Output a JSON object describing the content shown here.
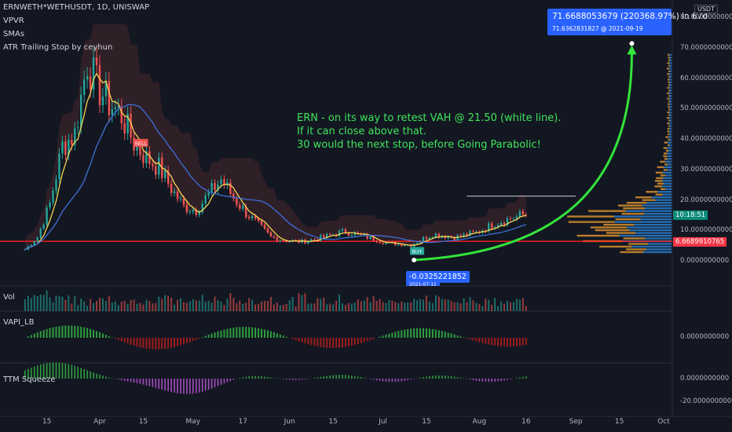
{
  "header": {
    "symbol": "ERNWETH*WETHUSDT, 1D, UNISWAP",
    "indicators": [
      "VPVR",
      "SMAs",
      "ATR Trailing Stop by ceyhun"
    ]
  },
  "annotation": {
    "lines": [
      "ERN - on its way to retest VAH @ 21.50 (white line).",
      "If it can close above that.",
      "30 would the next stop, before Going Parabolic!"
    ]
  },
  "target_tooltip": {
    "line1": "71.6688053679 (220368.97%) in 67d",
    "line2": "71.6362831827 @ 2021-09-19"
  },
  "low_tooltip": {
    "value": "-0.0325221852",
    "date": "2021-07-11"
  },
  "price_axis": {
    "currency": "USDT",
    "labels": [
      "80.0000000000",
      "70.0000000000",
      "60.0000000000",
      "50.0000000000",
      "40.0000000000",
      "30.0000000000",
      "20.0000000000",
      "10.0000000000",
      "0.0000000000"
    ],
    "current_price": "6.6689910765",
    "countdown": "10:18:51"
  },
  "time_axis": {
    "labels": [
      "15",
      "Apr",
      "15",
      "May",
      "17",
      "Jun",
      "15",
      "Jul",
      "15",
      "Aug",
      "16",
      "Sep",
      "15",
      "Oct"
    ]
  },
  "panes": {
    "volume": {
      "label": "Vol"
    },
    "vapi": {
      "label": "VAPI_LB",
      "axis_label": "0.0000000000"
    },
    "ttm": {
      "label": "TTM Squeeze",
      "axis_labels": [
        "0.0000000000",
        "-20.0000000000"
      ]
    }
  },
  "signals": {
    "sell": "SELL",
    "buy": "BUY"
  },
  "colors": {
    "background": "#131722",
    "up": "#26a69a",
    "down": "#ef5350",
    "atr_band": "#ef5350",
    "sma_fast": "#f7d354",
    "sma_slow": "#3e70d8",
    "support": "#ff2020",
    "arrow": "#33e43a",
    "tooltip": "#2962ff",
    "vpvr_up": "#f0a030",
    "vpvr_down": "#2e8be0"
  },
  "chart_data": {
    "type": "candlestick",
    "title": "ERNWETH*WETHUSDT, 1D, UNISWAP",
    "x_range": [
      "2021-03-05",
      "2021-10-01"
    ],
    "ylim": [
      -3,
      82
    ],
    "support_level": 6.67,
    "vah_level": 21.5,
    "projection": {
      "from": [
        "2021-07-11",
        0.5
      ],
      "to": [
        "2021-09-19",
        71.64
      ]
    },
    "close_approx": [
      [
        "2021-03-08",
        4
      ],
      [
        "2021-03-12",
        8
      ],
      [
        "2021-03-16",
        19
      ],
      [
        "2021-03-20",
        38
      ],
      [
        "2021-03-24",
        42
      ],
      [
        "2021-03-28",
        66
      ],
      [
        "2021-03-31",
        58
      ],
      [
        "2021-04-04",
        52
      ],
      [
        "2021-04-08",
        48
      ],
      [
        "2021-04-12",
        39
      ],
      [
        "2021-04-16",
        34
      ],
      [
        "2021-04-20",
        31
      ],
      [
        "2021-04-24",
        24
      ],
      [
        "2021-04-28",
        18
      ],
      [
        "2021-05-02",
        17
      ],
      [
        "2021-05-06",
        22
      ],
      [
        "2021-05-10",
        27
      ],
      [
        "2021-05-14",
        21
      ],
      [
        "2021-05-18",
        16
      ],
      [
        "2021-05-22",
        12
      ],
      [
        "2021-05-26",
        8
      ],
      [
        "2021-05-30",
        7
      ],
      [
        "2021-06-05",
        6.5
      ],
      [
        "2021-06-12",
        8
      ],
      [
        "2021-06-19",
        10
      ],
      [
        "2021-06-26",
        8
      ],
      [
        "2021-07-03",
        6
      ],
      [
        "2021-07-10",
        5.5
      ],
      [
        "2021-07-17",
        9
      ],
      [
        "2021-07-24",
        8
      ],
      [
        "2021-07-31",
        9.5
      ],
      [
        "2021-08-07",
        13
      ],
      [
        "2021-08-14",
        15
      ],
      [
        "2021-08-16",
        15.5
      ]
    ]
  }
}
